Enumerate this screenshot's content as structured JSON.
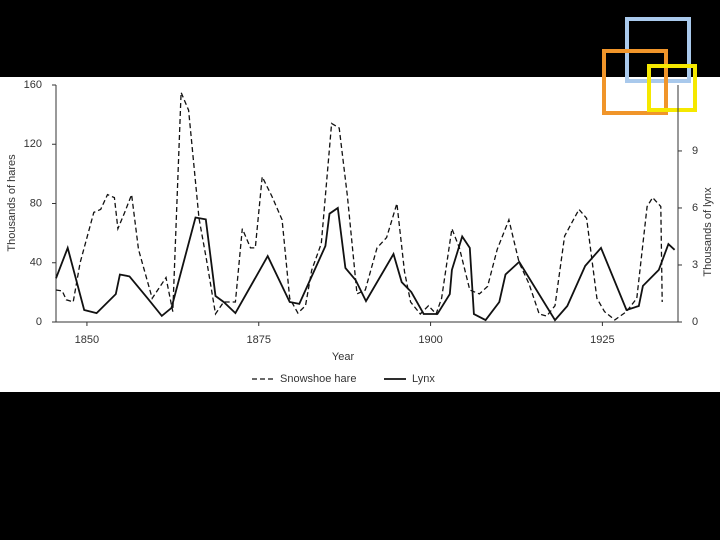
{
  "chart_data": {
    "type": "line",
    "xlabel": "Year",
    "ylabel": "Thousands of hares",
    "y2label": "Thousands of lynx",
    "xlim": [
      1845.5,
      1936
    ],
    "xticks": [
      1850,
      1875,
      1900,
      1925
    ],
    "ylim": [
      0,
      160
    ],
    "yticks": [
      0,
      40,
      80,
      120,
      160
    ],
    "y2lim": [
      0,
      12.47
    ],
    "y2ticks": [
      0,
      3,
      6,
      9
    ],
    "legend": "bottom",
    "series": [
      {
        "name": "Snowshoe hare",
        "color": "#111111",
        "dashed": true,
        "axis": "y",
        "x": [
          1845.5,
          1846.4,
          1847,
          1848,
          1849,
          1851,
          1852,
          1853,
          1854,
          1854.5,
          1855.5,
          1856.5,
          1857.5,
          1859.5,
          1861.5,
          1862.5,
          1863.7,
          1864.8,
          1866.3,
          1867.4,
          1868.7,
          1869.9,
          1871.6,
          1872.6,
          1873.8,
          1874.5,
          1875.5,
          1876.9,
          1878.4,
          1879.5,
          1880.7,
          1881.8,
          1882.7,
          1884.1,
          1885.6,
          1886.7,
          1887.9,
          1889.3,
          1890.5,
          1892.2,
          1893.6,
          1895.1,
          1896.2,
          1897.1,
          1898.5,
          1899.7,
          1900.8,
          1901.6,
          1903.1,
          1904.2,
          1905.7,
          1907.1,
          1908.3,
          1909.7,
          1911.4,
          1912.9,
          1914.3,
          1915.8,
          1916.9,
          1918.1,
          1919.5,
          1921.6,
          1922.7,
          1924.2,
          1925.3,
          1926.8,
          1928.5,
          1930,
          1931.5,
          1932.3,
          1933.5,
          1933.7
        ],
        "values": [
          21.6,
          21,
          15,
          13.5,
          40,
          74,
          76,
          86,
          84,
          63,
          74,
          86,
          49,
          16,
          30,
          7,
          155,
          143,
          70,
          42,
          5.5,
          13.5,
          13.5,
          63,
          50,
          50,
          98,
          85,
          69,
          16,
          6,
          11,
          35,
          53,
          134,
          131,
          85,
          19,
          21.6,
          50,
          57,
          80,
          34,
          13.5,
          5.4,
          11,
          5.4,
          16,
          63,
          50,
          21.6,
          19,
          24,
          49,
          69,
          40,
          26,
          5.4,
          4,
          11,
          58,
          76,
          70,
          16,
          7,
          1.4,
          7,
          16,
          78,
          84,
          78,
          13.5
        ]
      },
      {
        "name": "Lynx",
        "color": "#111111",
        "dashed": false,
        "axis": "y2",
        "x": [
          1845.5,
          1847.2,
          1849.6,
          1851.4,
          1854.2,
          1854.8,
          1856.2,
          1858.8,
          1860.9,
          1862.3,
          1865.8,
          1867.3,
          1868.7,
          1869.9,
          1871.6,
          1876.3,
          1879.5,
          1880.9,
          1884.7,
          1885.3,
          1886.5,
          1887.6,
          1889.1,
          1890.6,
          1894.6,
          1895.8,
          1897.2,
          1899,
          1901,
          1902.8,
          1903.1,
          1904.6,
          1905.7,
          1906.3,
          1908,
          1910,
          1910.9,
          1912.9,
          1918.1,
          1919.9,
          1922.5,
          1924.8,
          1928.5,
          1930.3,
          1930.9,
          1933.2,
          1934.6,
          1935.5
        ],
        "values": [
          2.3,
          3.9,
          0.63,
          0.47,
          1.47,
          2.5,
          2.4,
          1.26,
          0.32,
          0.74,
          5.5,
          5.4,
          1.37,
          1.05,
          0.47,
          3.47,
          1.05,
          0.95,
          4.0,
          5.7,
          6.0,
          2.84,
          2.2,
          1.1,
          3.58,
          2.1,
          1.58,
          0.42,
          0.42,
          1.47,
          2.74,
          4.5,
          3.9,
          0.42,
          0.1,
          1.05,
          2.5,
          3.16,
          0.1,
          0.84,
          2.95,
          3.9,
          0.63,
          0.84,
          1.9,
          2.74,
          4.1,
          3.8
        ]
      }
    ]
  }
}
